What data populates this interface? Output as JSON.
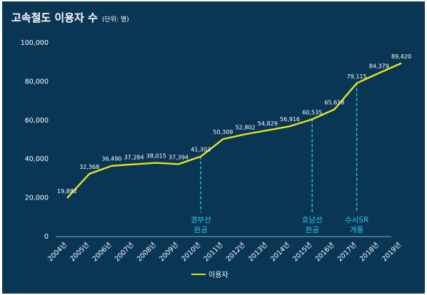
{
  "colors": {
    "background": "#0a3656",
    "line": "#e6e21c",
    "annotation": "#34c6e3",
    "text": "#ffffff",
    "axis": "#8fa6b8"
  },
  "chart_data": {
    "type": "line",
    "title": "고속철도 이용자 수",
    "unit": "(단위: 명)",
    "categories": [
      "2004년",
      "2005년",
      "2006년",
      "2007년",
      "2008년",
      "2009년",
      "2010년",
      "2011년",
      "2012년",
      "2013년",
      "2014년",
      "2015년",
      "2016년",
      "2017년",
      "2018년",
      "2019년"
    ],
    "series": [
      {
        "name": "이용자",
        "values": [
          19882,
          32368,
          36490,
          37284,
          38015,
          37394,
          41303,
          50309,
          52802,
          54829,
          56916,
          60535,
          65618,
          79115,
          84379,
          89420
        ],
        "labels": [
          "19,882",
          "32,368",
          "36,490",
          "37,284",
          "38,015",
          "37,394",
          "41,303",
          "50,309",
          "52,802",
          "54,829",
          "56,916",
          "60,535",
          "65,618",
          "79,115",
          "84,379",
          "89,420"
        ]
      }
    ],
    "ylim": [
      0,
      100000
    ],
    "yticks": [
      0,
      20000,
      40000,
      60000,
      80000,
      100000
    ],
    "ytick_labels": [
      "0",
      "20,000",
      "40,000",
      "60,000",
      "80,000",
      "100,000"
    ],
    "grid": false,
    "legend": "bottom",
    "annotations": [
      {
        "category": "2010년",
        "lines": [
          "경부선",
          "완공"
        ]
      },
      {
        "category": "2015년",
        "lines": [
          "호남선",
          "완공"
        ]
      },
      {
        "category": "2017년",
        "lines": [
          "수서SR",
          "개통"
        ]
      }
    ]
  }
}
